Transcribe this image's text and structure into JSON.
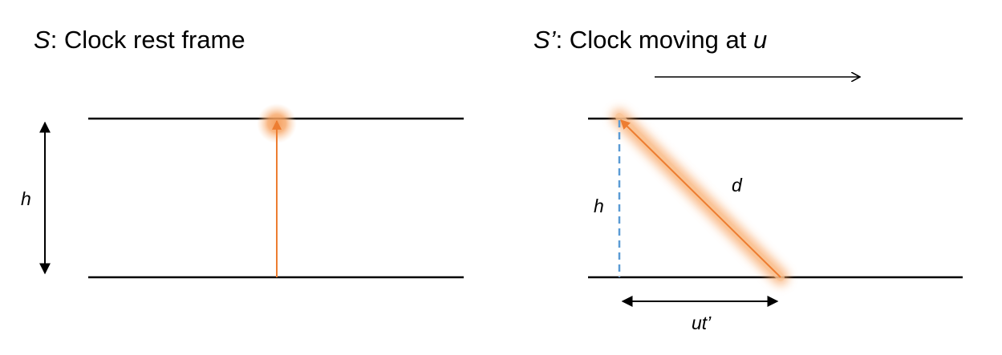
{
  "left_panel": {
    "title_symbol": "S",
    "title_text": ": Clock rest frame",
    "height_label": "h"
  },
  "right_panel": {
    "title_symbol": "S’",
    "title_text": ": Clock moving at ",
    "title_velocity": "u",
    "height_label": "h",
    "distance_label": "d",
    "displacement_label": "ut’"
  },
  "colors": {
    "mirror": "#000000",
    "light_path": "#ED7D31",
    "light_glow": "#F8A565",
    "height_dashed": "#5B9BD5",
    "arrows": "#000000"
  }
}
